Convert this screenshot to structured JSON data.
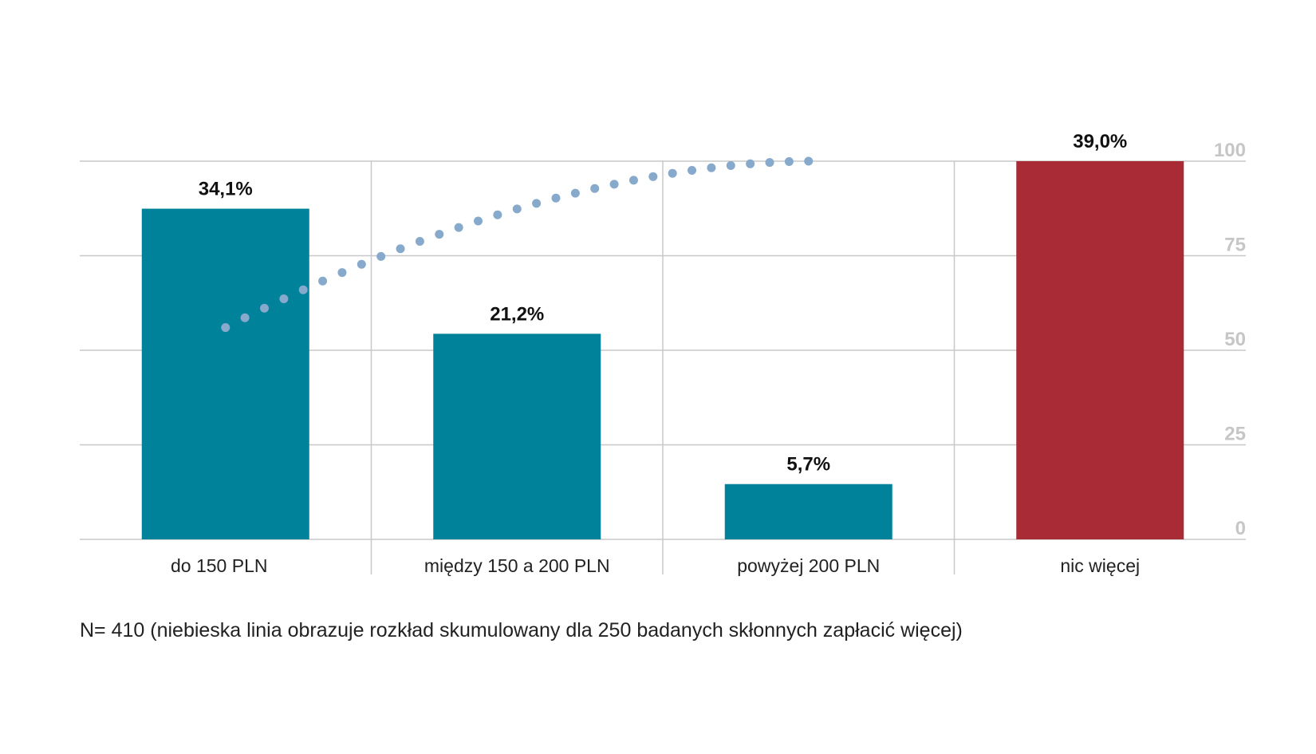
{
  "chart_data": {
    "type": "bar",
    "categories": [
      "do 150 PLN",
      "między 150 a 200 PLN",
      "powyżej 200 PLN",
      "nic więcej"
    ],
    "values": [
      34.1,
      21.2,
      5.7,
      39.0
    ],
    "data_labels": [
      "34,1%",
      "21,2%",
      "5,7%",
      "39,0%"
    ],
    "bar_colors": [
      "#00829a",
      "#00829a",
      "#00829a",
      "#a82b35"
    ],
    "ylim": [
      0,
      100
    ],
    "y_scale_max": 39.0,
    "y_ticks": [
      0,
      25,
      50,
      75,
      100
    ],
    "y_tick_labels": [
      "0",
      "25",
      "50",
      "75",
      "100"
    ],
    "y_axis_side": "right",
    "grid": true,
    "cumulative_line": {
      "style": "dotted",
      "color": "#86a9cc",
      "x_range": [
        0,
        2
      ],
      "y_start": 56,
      "y_end": 100,
      "point_count": 31
    },
    "note": "N= 410 (niebieska linia obrazuje rozkład skumulowany dla 250 badanych skłonnych zapłacić więcej)"
  }
}
